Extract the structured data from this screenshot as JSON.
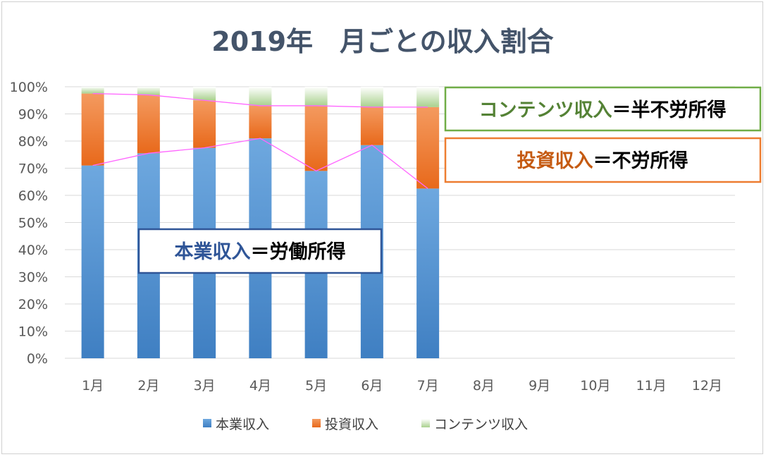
{
  "colors": {
    "honbu": "#5b9bd5",
    "toushi": "#ed7d31",
    "contents": "#a9d18e",
    "trend_line": "#ff66ff",
    "ann_contents_border": "#70ad47",
    "ann_contents_text": "#548235",
    "ann_toushi_border": "#ed7d31",
    "ann_toushi_text": "#c55a11",
    "ann_honbu_border": "#2f5597",
    "ann_honbu_text": "#2f5597"
  },
  "chart_data": {
    "type": "bar",
    "stacked": true,
    "title": "2019年　月ごとの収入割合",
    "categories": [
      "1月",
      "2月",
      "3月",
      "4月",
      "5月",
      "6月",
      "7月",
      "8月",
      "9月",
      "10月",
      "11月",
      "12月"
    ],
    "yticks": [
      "0%",
      "10%",
      "20%",
      "30%",
      "40%",
      "50%",
      "60%",
      "70%",
      "80%",
      "90%",
      "100%"
    ],
    "ylim": [
      0,
      100
    ],
    "grid": true,
    "legend_position": "bottom",
    "series": [
      {
        "name": "本業収入",
        "values": [
          71,
          75.5,
          77.5,
          81,
          69,
          78.5,
          62.5,
          null,
          null,
          null,
          null,
          null
        ]
      },
      {
        "name": "投資収入",
        "values": [
          26.5,
          21.5,
          17.5,
          12,
          24,
          14,
          30,
          null,
          null,
          null,
          null,
          null
        ]
      },
      {
        "name": "コンテンツ収入",
        "values": [
          2.5,
          3,
          5,
          7,
          7,
          7.5,
          7.5,
          null,
          null,
          null,
          null,
          null
        ]
      }
    ],
    "annotations": [
      {
        "id": "contents",
        "label": "コンテンツ収入",
        "suffix": "＝半不労所得"
      },
      {
        "id": "toushi",
        "label": "投資収入",
        "suffix": "＝不労所得"
      },
      {
        "id": "honbu",
        "label": "本業収入",
        "suffix": "＝労働所得"
      }
    ]
  }
}
